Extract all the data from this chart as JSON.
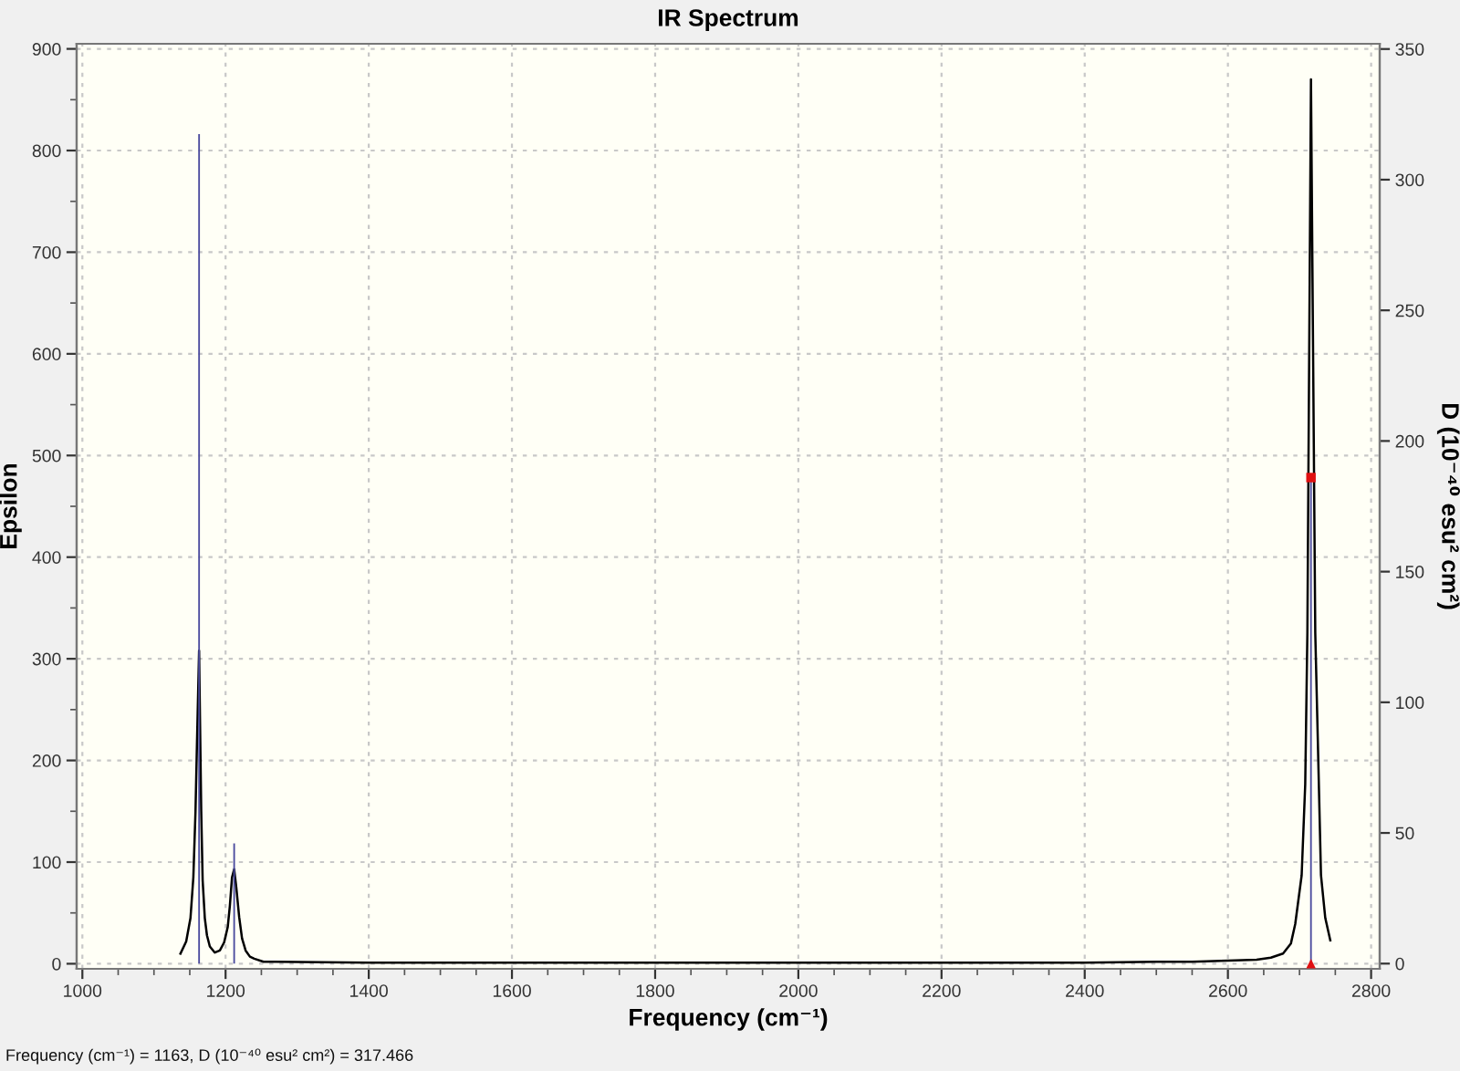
{
  "chart_data": {
    "type": "line",
    "title": "IR Spectrum",
    "xlabel": "Frequency (cm⁻¹)",
    "ylabel": "Epsilon",
    "y2label": "D (10⁻⁴⁰ esu² cm²)",
    "xlim": [
      992,
      2812
    ],
    "xticks": [
      1000,
      1200,
      1400,
      1600,
      1800,
      2000,
      2200,
      2400,
      2600,
      2800
    ],
    "ylim": [
      -5,
      905
    ],
    "yticks": [
      0,
      100,
      200,
      300,
      400,
      500,
      600,
      700,
      800,
      900
    ],
    "y2lim": [
      -2,
      352
    ],
    "y2ticks": [
      0,
      50,
      100,
      150,
      200,
      250,
      300,
      350
    ],
    "grid": true,
    "series": [
      {
        "color": "#000000",
        "x": [
          1137,
          1145,
          1151,
          1155,
          1158,
          1160,
          1163,
          1166,
          1168,
          1171,
          1174,
          1178,
          1185,
          1192,
          1198,
          1203,
          1206,
          1209,
          1212,
          1215,
          1219,
          1223,
          1228,
          1234,
          1240,
          1253,
          1270,
          1400,
          1600,
          1800,
          2000,
          2200,
          2400,
          2500,
          2550,
          2600,
          2640,
          2660,
          2677,
          2688,
          2694,
          2703,
          2708,
          2711,
          2716,
          2722,
          2727,
          2730,
          2736,
          2743
        ],
        "values": [
          10,
          22,
          45,
          85,
          150,
          215,
          308,
          150,
          82,
          45,
          28,
          17,
          11,
          13,
          21,
          36,
          57,
          85,
          93,
          75,
          46,
          25,
          13,
          7,
          5,
          2,
          2,
          1,
          1,
          1,
          1,
          1,
          1,
          2,
          2,
          3,
          4,
          6,
          10,
          20,
          39,
          87,
          177,
          326,
          870,
          326,
          177,
          87,
          45,
          23
        ]
      },
      {
        "type": "bar",
        "axis": "y2",
        "color": "#4b4b9e",
        "x": [
          1163,
          1212,
          2716
        ],
        "values": [
          317.466,
          46,
          186
        ]
      },
      {
        "type": "scatter",
        "axis": "y2",
        "marker": "square",
        "color": "#e01010",
        "x": [
          2716
        ],
        "values": [
          186
        ]
      },
      {
        "type": "scatter",
        "axis": "y2",
        "marker": "triangle",
        "color": "#e01010",
        "x": [
          2716
        ],
        "values": [
          0
        ]
      }
    ],
    "annotations": [
      "Frequency (cm⁻¹) = 1163, D (10⁻⁴⁰ esu² cm²) = 317.466"
    ]
  }
}
